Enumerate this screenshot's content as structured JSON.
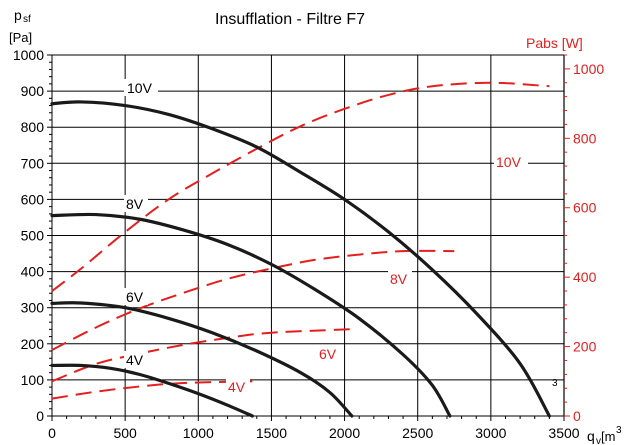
{
  "chart_data": {
    "type": "line",
    "title": "Insufflation - Filtre F7",
    "y_label_symbol": "p",
    "y_label_sub": "sf",
    "y_unit": "[Pa]",
    "y2_label": "Pabs [W]",
    "x_label_symbol": "q",
    "x_label_sub": "v",
    "x_unit_text": "[m",
    "x_unit_sup": "3",
    "stray_mark": "3",
    "xlim": [
      0,
      3500
    ],
    "ylim": [
      0,
      1000
    ],
    "y2lim": [
      0,
      1040
    ],
    "x_ticks": [
      "0",
      "500",
      "1000",
      "1500",
      "2000",
      "2500",
      "3000",
      "3500"
    ],
    "y_ticks": [
      "0",
      "100",
      "200",
      "300",
      "400",
      "500",
      "600",
      "700",
      "800",
      "900",
      "1000"
    ],
    "y2_ticks": [
      "0",
      "200",
      "400",
      "600",
      "800",
      "1000"
    ],
    "colors": {
      "pressure": "#1a1a1a",
      "power": "#e32020",
      "grid": "#000000"
    },
    "pressure_series": [
      {
        "name": "10V",
        "points": [
          [
            0,
            865
          ],
          [
            200,
            870
          ],
          [
            500,
            860
          ],
          [
            800,
            835
          ],
          [
            1100,
            795
          ],
          [
            1400,
            745
          ],
          [
            1700,
            675
          ],
          [
            2000,
            600
          ],
          [
            2300,
            510
          ],
          [
            2600,
            405
          ],
          [
            2900,
            285
          ],
          [
            3200,
            145
          ],
          [
            3400,
            0
          ]
        ]
      },
      {
        "name": "8V",
        "points": [
          [
            0,
            555
          ],
          [
            300,
            558
          ],
          [
            600,
            545
          ],
          [
            900,
            515
          ],
          [
            1200,
            475
          ],
          [
            1500,
            420
          ],
          [
            1800,
            350
          ],
          [
            2100,
            270
          ],
          [
            2400,
            170
          ],
          [
            2600,
            85
          ],
          [
            2720,
            0
          ]
        ]
      },
      {
        "name": "6V",
        "points": [
          [
            0,
            312
          ],
          [
            200,
            313
          ],
          [
            500,
            300
          ],
          [
            800,
            270
          ],
          [
            1100,
            230
          ],
          [
            1400,
            180
          ],
          [
            1700,
            120
          ],
          [
            1900,
            65
          ],
          [
            2050,
            0
          ]
        ]
      },
      {
        "name": "4V",
        "points": [
          [
            0,
            140
          ],
          [
            200,
            140
          ],
          [
            400,
            132
          ],
          [
            600,
            115
          ],
          [
            800,
            90
          ],
          [
            1000,
            62
          ],
          [
            1200,
            30
          ],
          [
            1370,
            0
          ]
        ]
      }
    ],
    "power_series": [
      {
        "name": "10V",
        "points": [
          [
            0,
            360
          ],
          [
            200,
            425
          ],
          [
            500,
            530
          ],
          [
            800,
            625
          ],
          [
            1100,
            700
          ],
          [
            1400,
            770
          ],
          [
            1700,
            835
          ],
          [
            2000,
            885
          ],
          [
            2300,
            925
          ],
          [
            2600,
            950
          ],
          [
            3000,
            960
          ],
          [
            3400,
            950
          ]
        ]
      },
      {
        "name": "8V",
        "points": [
          [
            0,
            190
          ],
          [
            300,
            255
          ],
          [
            600,
            310
          ],
          [
            900,
            355
          ],
          [
            1200,
            395
          ],
          [
            1500,
            425
          ],
          [
            1800,
            450
          ],
          [
            2100,
            465
          ],
          [
            2400,
            475
          ],
          [
            2750,
            475
          ]
        ]
      },
      {
        "name": "6V",
        "points": [
          [
            0,
            100
          ],
          [
            300,
            150
          ],
          [
            600,
            180
          ],
          [
            900,
            205
          ],
          [
            1200,
            225
          ],
          [
            1500,
            240
          ],
          [
            2050,
            250
          ]
        ]
      },
      {
        "name": "4V",
        "points": [
          [
            0,
            50
          ],
          [
            300,
            70
          ],
          [
            600,
            85
          ],
          [
            900,
            95
          ],
          [
            1370,
            100
          ]
        ]
      }
    ],
    "curve_labels": {
      "pressure": [
        "10V",
        "8V",
        "6V",
        "4V"
      ],
      "power": [
        "10V",
        "8V",
        "6V",
        "4V"
      ]
    }
  }
}
